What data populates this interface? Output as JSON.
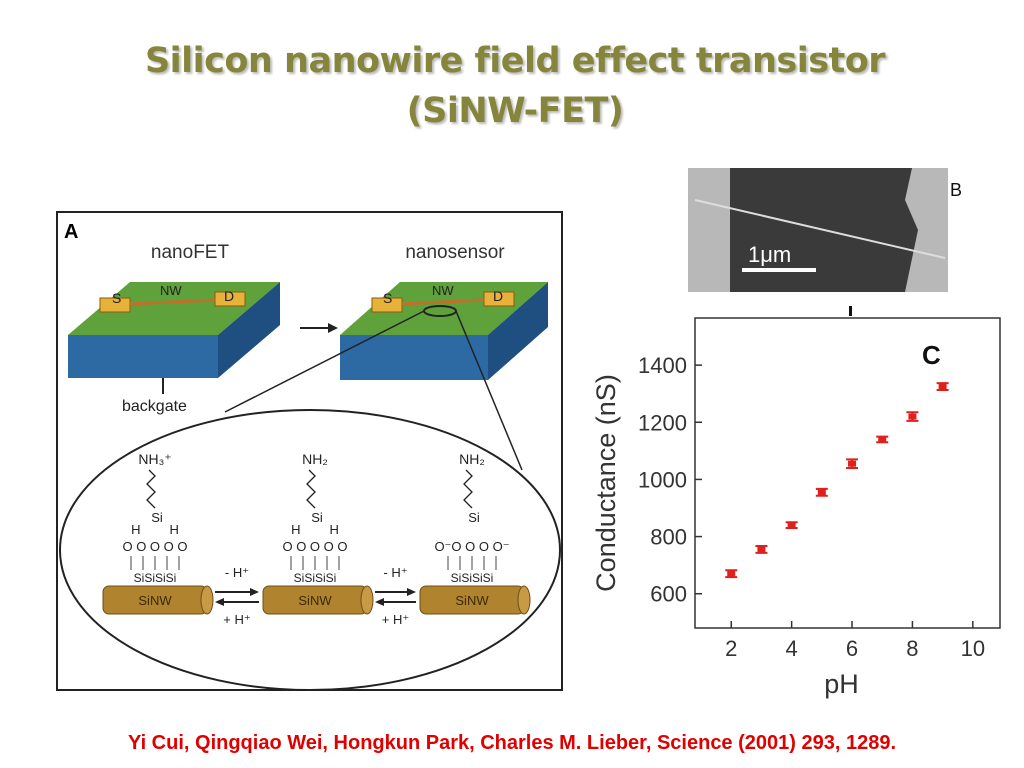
{
  "title": "Silicon nanowire field effect transistor (SiNW-FET)",
  "citation": "Yi Cui, Qingqiao Wei, Hongkun Park, Charles M. Lieber, Science (2001)  293, 1289.",
  "panel_a": {
    "label": "A",
    "nanofet": "nanoFET",
    "nanosensor": "nanosensor",
    "source": "S",
    "nanowire": "NW",
    "drain": "D",
    "backgate": "backgate",
    "wire": "SiNW",
    "groups": [
      {
        "amine": "NH₃⁺",
        "silicon": "Si",
        "hydrogens": "H        H",
        "oxygens": "O O O O O",
        "anchors": "SiSiSiSi"
      },
      {
        "amine": "NH₂",
        "silicon": "Si",
        "hydrogens": "H        H",
        "oxygens": "O O O O O",
        "anchors": "SiSiSiSi"
      },
      {
        "amine": "NH₂",
        "silicon": "Si",
        "hydrogens": "",
        "oxygens": "O⁻O O O O⁻",
        "anchors": "SiSiSiSi"
      }
    ],
    "arrows": [
      {
        "forward": "- H⁺",
        "back": "+ H⁺"
      },
      {
        "forward": "- H⁺",
        "back": "+ H⁺"
      }
    ]
  },
  "panel_b": {
    "label": "B",
    "scale": "1μm"
  },
  "chart_data": {
    "type": "scatter",
    "panel_label": "C",
    "xlabel": "pH",
    "ylabel": "Conductance (nS)",
    "x": [
      2,
      3,
      4,
      5,
      6,
      7,
      8,
      9
    ],
    "values": [
      670,
      755,
      840,
      955,
      1055,
      1140,
      1220,
      1325
    ],
    "errors": [
      12,
      12,
      10,
      12,
      15,
      10,
      15,
      12
    ],
    "color": "#e0201c",
    "xlim": [
      0.8,
      10.9
    ],
    "ylim": [
      480,
      1565
    ],
    "xticks": [
      2,
      4,
      6,
      8,
      10
    ],
    "yticks": [
      600,
      800,
      1000,
      1200,
      1400
    ]
  }
}
